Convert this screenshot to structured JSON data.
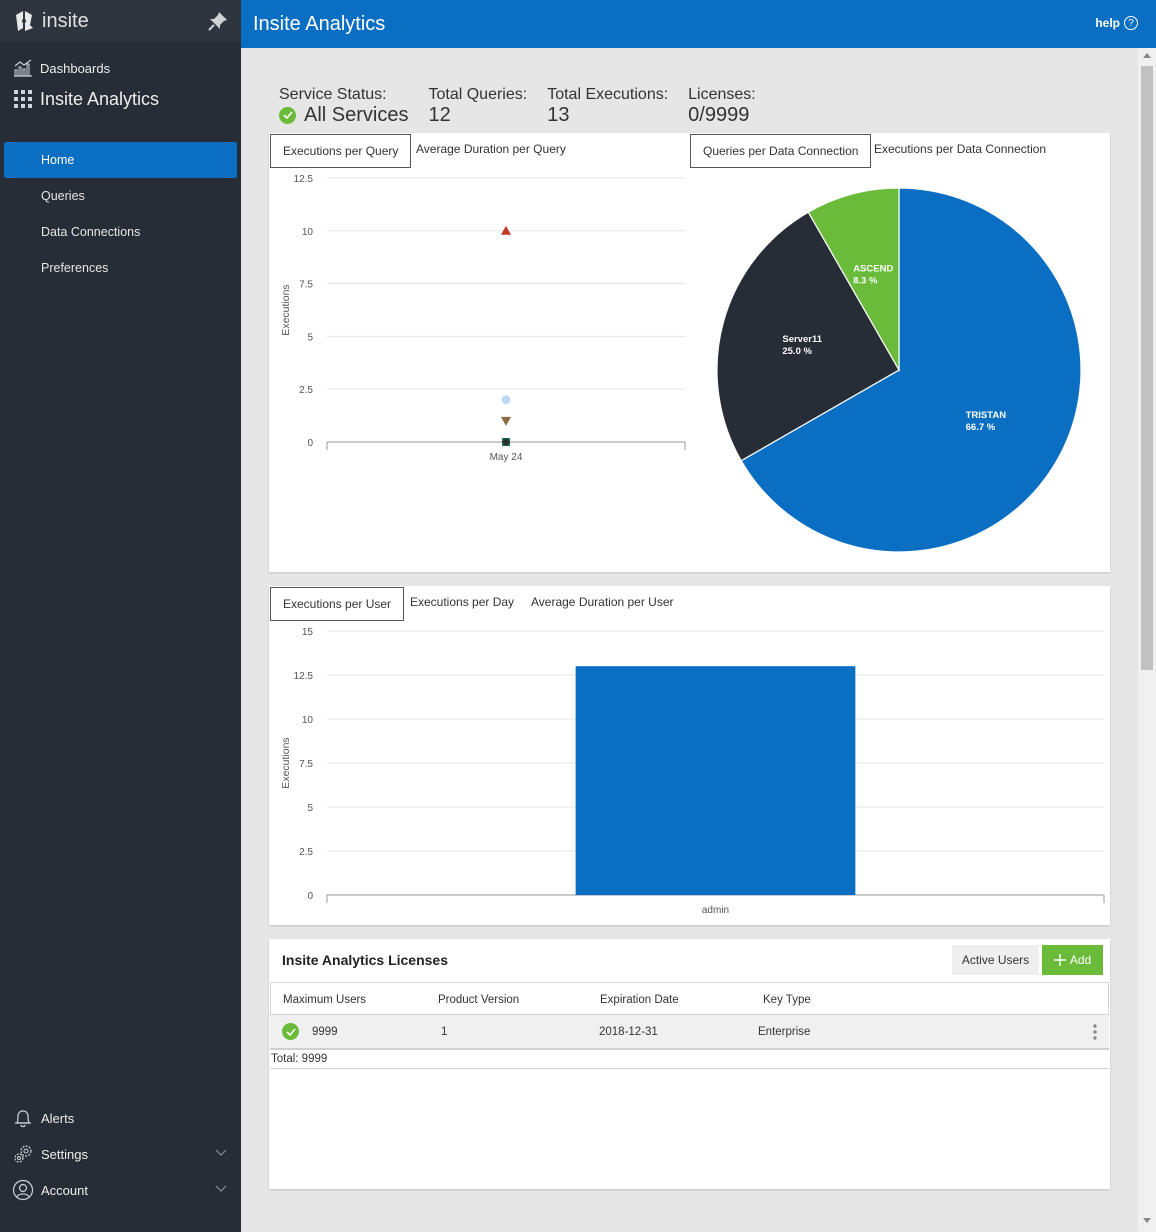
{
  "app": {
    "brand": "insite",
    "title": "Insite Analytics",
    "help": "help"
  },
  "sidebar": {
    "dashboards": "Dashboards",
    "section": "Insite Analytics",
    "items": [
      {
        "label": "Home",
        "active": true
      },
      {
        "label": "Queries",
        "active": false
      },
      {
        "label": "Data Connections",
        "active": false
      },
      {
        "label": "Preferences",
        "active": false
      }
    ],
    "bottom": {
      "alerts": "Alerts",
      "settings": "Settings",
      "account": "Account"
    }
  },
  "stats": {
    "service_label": "Service Status:",
    "service_value": "All Services",
    "queries_label": "Total Queries:",
    "queries_value": "12",
    "executions_label": "Total Executions:",
    "executions_value": "13",
    "licenses_label": "Licenses:",
    "licenses_value": "0/9999"
  },
  "panel1": {
    "tabs": [
      "Executions per Query",
      "Average Duration per Query"
    ],
    "tabs_right": [
      "Queries per Data Connection",
      "Executions per Data Connection"
    ]
  },
  "panel2": {
    "tabs": [
      "Executions per User",
      "Executions per Day",
      "Average Duration per User"
    ]
  },
  "chart_data": [
    {
      "type": "scatter",
      "ylabel": "Executions",
      "ylim": [
        0,
        12.5
      ],
      "yticks": [
        "12.5",
        "10",
        "7.5",
        "5",
        "2.5",
        "0"
      ],
      "x": [
        "May 24"
      ],
      "series": [
        {
          "values": [
            10
          ],
          "marker": "triangle-up",
          "color": "#c0392b"
        },
        {
          "values": [
            2
          ],
          "marker": "circle",
          "color": "#bcd9f2"
        },
        {
          "values": [
            1
          ],
          "marker": "triangle-down",
          "color": "#8a6b43"
        },
        {
          "values": [
            0
          ],
          "marker": "square",
          "color": "#1f6b4a"
        },
        {
          "values": [
            0
          ],
          "marker": "diamond",
          "color": "#262d36"
        }
      ]
    },
    {
      "type": "pie",
      "slices": [
        {
          "label": "TRISTAN",
          "pct_text": "66.7 %",
          "value": 66.7,
          "color": "#0a6fc2"
        },
        {
          "label": "Server11",
          "pct_text": "25.0 %",
          "value": 25.0,
          "color": "#262d36"
        },
        {
          "label": "ASCEND",
          "pct_text": "8.3 %",
          "value": 8.3,
          "color": "#6bbb3a"
        }
      ]
    },
    {
      "type": "bar",
      "ylabel": "Executions",
      "ylim": [
        0,
        15
      ],
      "yticks": [
        "15",
        "12.5",
        "10",
        "7.5",
        "5",
        "2.5",
        "0"
      ],
      "categories": [
        "admin"
      ],
      "values": [
        13
      ],
      "color": "#0a6fc2"
    }
  ],
  "licenses": {
    "title": "Insite Analytics Licenses",
    "active_users": "Active Users",
    "add": "Add",
    "columns": [
      "Maximum Users",
      "Product Version",
      "Expiration Date",
      "Key Type"
    ],
    "rows": [
      {
        "max_users": "9999",
        "version": "1",
        "expiration": "2018-12-31",
        "key_type": "Enterprise"
      }
    ],
    "total": "Total: 9999"
  },
  "colors": {
    "accent": "#0a6fc2",
    "sidebar": "#262d36",
    "success": "#6bbb3a"
  }
}
